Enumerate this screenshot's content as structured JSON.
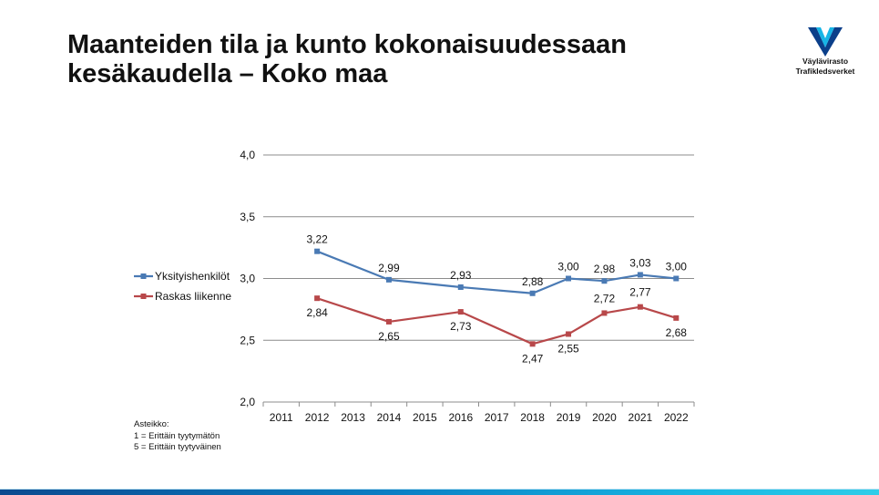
{
  "slide": {
    "title_line1": "Maanteiden tila ja kunto kokonaisuudessaan",
    "title_line2": "kesäkaudella – Koko maa"
  },
  "logo": {
    "line1": "Väylävirasto",
    "line2": "Trafikledsverket",
    "colors": {
      "dark": "#0b3f8a",
      "light": "#17b5e6"
    }
  },
  "scale_note": {
    "heading": "Asteikko:",
    "line1": "1 = Erittäin tyytymätön",
    "line2": "5 = Erittäin tyytyväinen"
  },
  "chart_data": {
    "type": "line",
    "title": "",
    "xlabel": "",
    "ylabel": "",
    "categories": [
      "2011",
      "2012",
      "2013",
      "2014",
      "2015",
      "2016",
      "2017",
      "2018",
      "2019",
      "2020",
      "2021",
      "2022"
    ],
    "ylim": [
      2.0,
      4.0
    ],
    "yticks": [
      2.0,
      2.5,
      3.0,
      3.5,
      4.0
    ],
    "ytick_labels": [
      "2,0",
      "2,5",
      "3,0",
      "3,5",
      "4,0"
    ],
    "grid": true,
    "legend_position": "left",
    "series": [
      {
        "name": "Yksityishenkilöt",
        "color": "#4a7ab4",
        "values": [
          null,
          3.22,
          null,
          2.99,
          null,
          2.93,
          null,
          2.88,
          3.0,
          2.98,
          3.03,
          3.0
        ],
        "labels": [
          null,
          "3,22",
          null,
          "2,99",
          null,
          "2,93",
          null,
          "2,88",
          "3,00",
          "2,98",
          "3,03",
          "3,00"
        ]
      },
      {
        "name": "Raskas liikenne",
        "color": "#b8484a",
        "values": [
          null,
          2.84,
          null,
          2.65,
          null,
          2.73,
          null,
          2.47,
          2.55,
          2.72,
          2.77,
          2.68
        ],
        "labels": [
          null,
          "2,84",
          null,
          "2,65",
          null,
          "2,73",
          null,
          "2,47",
          "2,55",
          "2,72",
          "2,77",
          "2,68"
        ]
      }
    ]
  }
}
